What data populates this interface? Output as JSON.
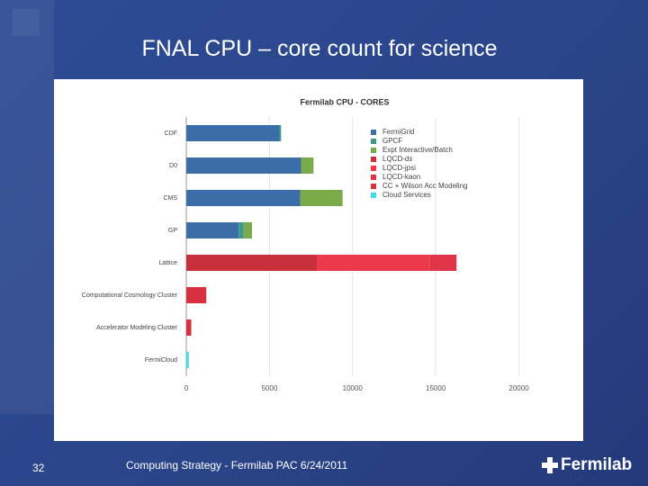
{
  "slide": {
    "title": "FNAL CPU – core count for science",
    "page_number": "32",
    "footer": "Computing Strategy - Fermilab PAC 6/24/2011",
    "logo": "Fermilab"
  },
  "chart_data": {
    "type": "stacked-barh",
    "title": "Fermilab CPU - CORES",
    "categories": [
      "CDF",
      "D0",
      "CMS",
      "GP",
      "Lattice",
      "Computational Cosmology Cluster",
      "Accelerator Modeling Cluster",
      "FermiCloud"
    ],
    "series": [
      {
        "name": "FermiGrid",
        "color": "#3b6ea8",
        "values": [
          5600,
          6900,
          6850,
          3150,
          null,
          null,
          null,
          null
        ]
      },
      {
        "name": "GPCF",
        "color": "#3a9a8a",
        "values": [
          100,
          null,
          null,
          300,
          null,
          null,
          null,
          null
        ]
      },
      {
        "name": "Expt Interactive/Batch",
        "color": "#79ab4a",
        "values": [
          null,
          750,
          2550,
          500,
          null,
          null,
          null,
          null
        ]
      },
      {
        "name": "LQCD-ds",
        "color": "#c8303c",
        "values": [
          null,
          null,
          null,
          null,
          7850,
          null,
          null,
          null
        ]
      },
      {
        "name": "LQCD-jpsi",
        "color": "#ec3a4c",
        "values": [
          null,
          null,
          null,
          null,
          6800,
          null,
          null,
          null
        ]
      },
      {
        "name": "LQCD-kaon",
        "color": "#e03448",
        "values": [
          null,
          null,
          null,
          null,
          1600,
          null,
          null,
          null
        ]
      },
      {
        "name": "CC + Wilson Acc Modeling",
        "color": "#d8303e",
        "values": [
          null,
          null,
          null,
          null,
          null,
          1200,
          300,
          null
        ]
      },
      {
        "name": "Cloud Services",
        "color": "#42dde8",
        "values": [
          null,
          null,
          null,
          null,
          null,
          null,
          null,
          150
        ]
      }
    ],
    "xlim": [
      0,
      21000
    ],
    "xticks": [
      0,
      5000,
      10000,
      15000,
      20000
    ],
    "grid": true
  }
}
